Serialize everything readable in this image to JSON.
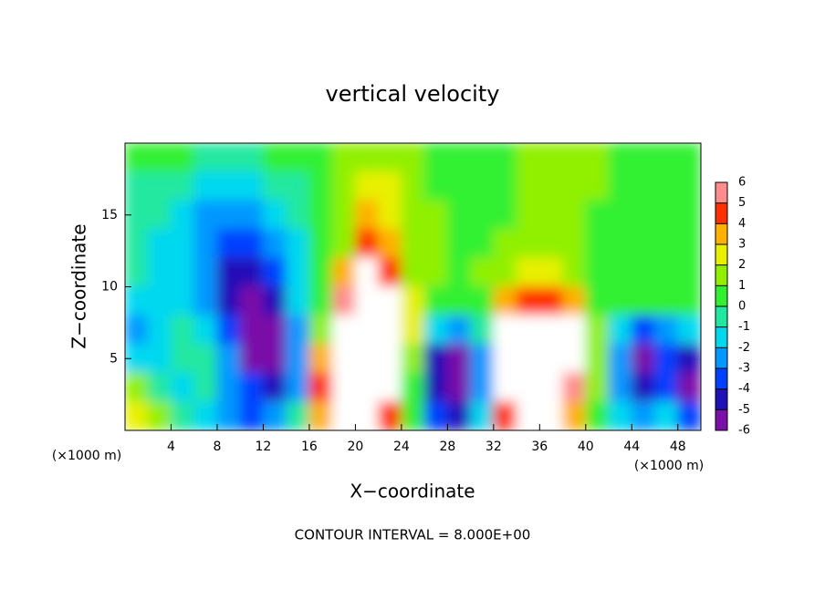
{
  "chart_data": {
    "type": "heatmap",
    "title": "vertical velocity",
    "xlabel": "X−coordinate",
    "ylabel": "Z−coordinate",
    "x_unit": "(×1000 m)",
    "footer": "CONTOUR INTERVAL = 8.000E+00",
    "xlim": [
      0,
      50
    ],
    "xticks": [
      4,
      8,
      12,
      16,
      20,
      24,
      28,
      32,
      36,
      40,
      44,
      48
    ],
    "ylim": [
      0,
      20
    ],
    "yticks": [
      5,
      10,
      15
    ],
    "x": [
      1,
      3,
      5,
      7,
      9,
      11,
      13,
      15,
      17,
      19,
      21,
      23,
      25,
      27,
      29,
      31,
      33,
      35,
      37,
      39,
      41,
      43,
      45,
      47,
      49
    ],
    "z": [
      19,
      17,
      15,
      13,
      11,
      9,
      7,
      5,
      3,
      1
    ],
    "values": [
      [
        0,
        0,
        0,
        -1,
        -1,
        -1,
        0,
        0,
        0,
        1,
        1,
        1,
        1,
        0,
        0,
        0,
        0,
        1,
        1,
        1,
        1,
        0,
        0,
        0,
        0
      ],
      [
        -1,
        -1,
        -1,
        -2,
        -2,
        -2,
        -1,
        -1,
        0,
        1,
        2,
        2,
        1,
        0,
        0,
        0,
        0,
        1,
        1,
        1,
        1,
        0,
        0,
        0,
        0
      ],
      [
        -1,
        -1,
        -2,
        -3,
        -3,
        -3,
        -2,
        -1,
        0,
        1,
        3,
        2,
        1,
        1,
        0,
        0,
        0,
        1,
        1,
        1,
        0,
        0,
        0,
        0,
        0
      ],
      [
        -1,
        -2,
        -2,
        -3,
        -4,
        -4,
        -3,
        -2,
        0,
        1,
        4,
        3,
        1,
        1,
        0,
        0,
        1,
        1,
        1,
        1,
        0,
        0,
        0,
        0,
        0
      ],
      [
        -1,
        -2,
        -2,
        -3,
        -5,
        -5,
        -4,
        -2,
        0,
        3,
        6,
        4,
        1,
        1,
        0,
        1,
        1,
        2,
        2,
        1,
        0,
        0,
        0,
        0,
        0
      ],
      [
        -2,
        -2,
        -2,
        -3,
        -5,
        -6,
        -5,
        -2,
        0,
        5,
        7,
        6,
        2,
        0,
        0,
        0,
        3,
        4,
        4,
        3,
        0,
        0,
        0,
        0,
        0
      ],
      [
        -3,
        -2,
        -1,
        -2,
        -4,
        -6,
        -6,
        -3,
        1,
        6,
        8,
        7,
        2,
        -2,
        -3,
        -1,
        6,
        8,
        8,
        6,
        1,
        -2,
        -4,
        -3,
        -2
      ],
      [
        -2,
        -2,
        -1,
        -1,
        -3,
        -6,
        -6,
        -3,
        3,
        7,
        9,
        8,
        1,
        -5,
        -6,
        -3,
        7,
        9,
        9,
        6,
        1,
        -3,
        -6,
        -4,
        -5
      ],
      [
        1,
        -1,
        -2,
        -1,
        -3,
        -4,
        -5,
        -3,
        4,
        8,
        9,
        8,
        0,
        -5,
        -7,
        -3,
        6,
        9,
        9,
        5,
        1,
        -3,
        -5,
        -4,
        -6
      ],
      [
        2,
        1,
        -1,
        -2,
        -3,
        -4,
        -3,
        -1,
        3,
        6,
        7,
        4,
        0,
        -4,
        -5,
        -2,
        4,
        7,
        6,
        3,
        0,
        -2,
        -3,
        -2,
        -4
      ]
    ],
    "levels": [
      -6,
      -5,
      -4,
      -3,
      -2,
      -1,
      0,
      1,
      2,
      3,
      4,
      5,
      6
    ],
    "colors": [
      "#7a10a8",
      "#2010b8",
      "#0040ff",
      "#0098ff",
      "#00d8f0",
      "#20e8a0",
      "#30f030",
      "#90f000",
      "#e8f000",
      "#ffb000",
      "#ff3000",
      "#ff8c8c"
    ],
    "above_color": "#ffffff",
    "below_color": "#7a10a8"
  }
}
